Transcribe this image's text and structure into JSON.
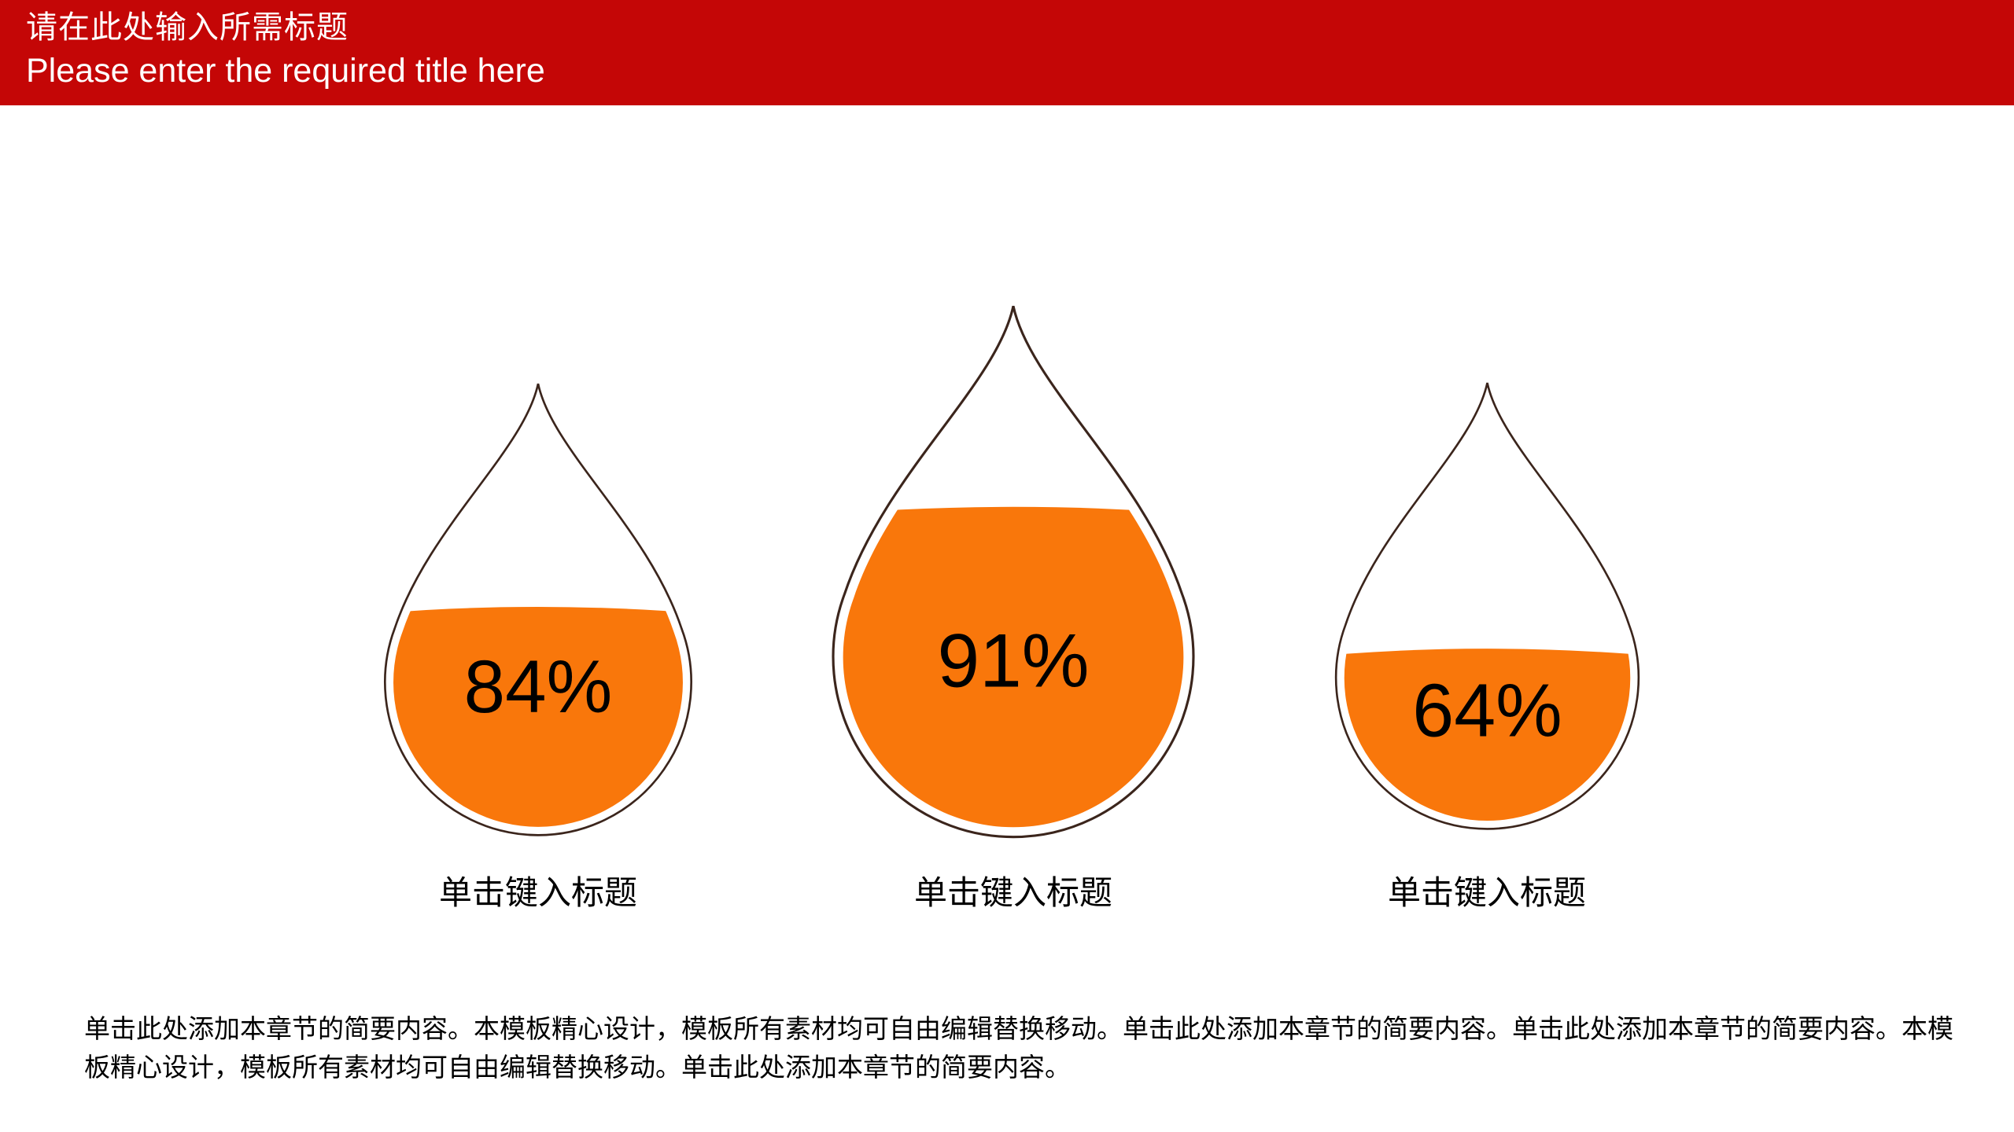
{
  "header": {
    "title_zh": "请在此处输入所需标题",
    "title_en": "Please enter the required title here"
  },
  "drops": [
    {
      "percent": "84%",
      "value": 84,
      "fill_ratio": 0.5,
      "label": "单击键入标题"
    },
    {
      "percent": "91%",
      "value": 91,
      "fill_ratio": 0.614,
      "label": "单击键入标题"
    },
    {
      "percent": "64%",
      "value": 64,
      "fill_ratio": 0.4,
      "label": "单击键入标题"
    }
  ],
  "body_text": "单击此处添加本章节的简要内容。本模板精心设计，模板所有素材均可自由编辑替换移动。单击此处添加本章节的简要内容。单击此处添加本章节的简要内容。本模板精心设计，模板所有素材均可自由编辑替换移动。单击此处添加本章节的简要内容。",
  "colors": {
    "header_bg": "#c40606",
    "header_text": "#ffffff",
    "drop_fill": "#f9770b",
    "drop_outline": "#3b251c",
    "body_text": "#000000"
  },
  "chart_data": {
    "type": "bar",
    "variant": "droplet-fill-gauge",
    "title": "请在此处输入所需标题 / Please enter the required title here",
    "categories": [
      "单击键入标题",
      "单击键入标题",
      "单击键入标题"
    ],
    "values": [
      84,
      91,
      64
    ],
    "unit": "%",
    "ylim": [
      0,
      100
    ],
    "legend": "none",
    "grid": false
  }
}
